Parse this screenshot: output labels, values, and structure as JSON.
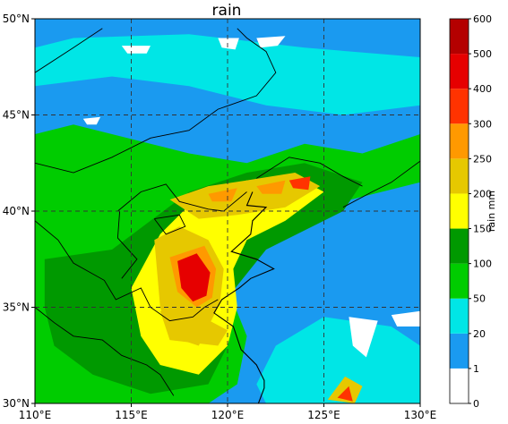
{
  "title": "rain",
  "map": {
    "lon_range": [
      110,
      130
    ],
    "lat_range": [
      30,
      50
    ],
    "lon_ticks": [
      {
        "value": 110,
        "label": "110°E"
      },
      {
        "value": 115,
        "label": "115°E"
      },
      {
        "value": 120,
        "label": "120°E"
      },
      {
        "value": 125,
        "label": "125°E"
      },
      {
        "value": 130,
        "label": "130°E"
      }
    ],
    "lat_ticks": [
      {
        "value": 30,
        "label": "30°N"
      },
      {
        "value": 35,
        "label": "35°N"
      },
      {
        "value": 40,
        "label": "40°N"
      },
      {
        "value": 45,
        "label": "45°N"
      },
      {
        "value": 50,
        "label": "50°N"
      }
    ],
    "gridlines": "dashed",
    "rain_regions": [
      {
        "name": "background",
        "level": 1,
        "lon": [
          110,
          130
        ],
        "lat": [
          30,
          50
        ]
      },
      {
        "name": "north-band",
        "level": 2,
        "poly": [
          [
            110,
            46.5
          ],
          [
            114,
            47
          ],
          [
            118,
            46.5
          ],
          [
            122,
            45.5
          ],
          [
            126,
            45
          ],
          [
            130,
            45.5
          ],
          [
            130,
            48
          ],
          [
            124,
            48.5
          ],
          [
            118,
            49.2
          ],
          [
            112,
            49
          ],
          [
            110,
            48.5
          ]
        ]
      },
      {
        "name": "west-green",
        "level": 3,
        "poly": [
          [
            110,
            44
          ],
          [
            112,
            44.5
          ],
          [
            116,
            43.5
          ],
          [
            118,
            43
          ],
          [
            121,
            42.5
          ],
          [
            124,
            43.5
          ],
          [
            127,
            43
          ],
          [
            130,
            44
          ],
          [
            130,
            41.5
          ],
          [
            126,
            40.5
          ],
          [
            122,
            38.5
          ],
          [
            120,
            36
          ],
          [
            121,
            33.5
          ],
          [
            120.5,
            31
          ],
          [
            119,
            30
          ],
          [
            110,
            30
          ]
        ]
      },
      {
        "name": "sw-green",
        "level": 4,
        "poly": [
          [
            110.5,
            37.5
          ],
          [
            114,
            38
          ],
          [
            116,
            39.5
          ],
          [
            118,
            41
          ],
          [
            121,
            42
          ],
          [
            124,
            42.5
          ],
          [
            127,
            41.5
          ],
          [
            126,
            40
          ],
          [
            122,
            38
          ],
          [
            120,
            35.5
          ],
          [
            120,
            33
          ],
          [
            119,
            31
          ],
          [
            116,
            30.5
          ],
          [
            113,
            31.5
          ],
          [
            111,
            33
          ],
          [
            110.5,
            35
          ]
        ]
      },
      {
        "name": "green-core",
        "level": 5,
        "poly": [
          [
            115,
            36
          ],
          [
            116.5,
            38.8
          ],
          [
            118.5,
            40.8
          ],
          [
            121,
            41.6
          ],
          [
            123.5,
            41.8
          ],
          [
            125,
            41
          ],
          [
            123,
            39.5
          ],
          [
            121,
            38.5
          ],
          [
            120.3,
            37
          ],
          [
            120.5,
            35
          ],
          [
            120,
            33
          ],
          [
            118.5,
            31.5
          ],
          [
            116.5,
            32
          ],
          [
            115.5,
            33.5
          ]
        ]
      },
      {
        "name": "yellow-north",
        "level": 6,
        "poly": [
          [
            117,
            40.6
          ],
          [
            119,
            41.3
          ],
          [
            121,
            41.6
          ],
          [
            123.5,
            42
          ],
          [
            124.8,
            41.3
          ],
          [
            123,
            40.2
          ],
          [
            120.5,
            39.8
          ],
          [
            118.5,
            39.6
          ]
        ]
      },
      {
        "name": "yellow-central",
        "level": 6,
        "poly": [
          [
            116.2,
            38.5
          ],
          [
            117.5,
            39.2
          ],
          [
            119,
            38.5
          ],
          [
            119.8,
            37
          ],
          [
            119.6,
            35.2
          ],
          [
            119,
            34
          ],
          [
            118.5,
            33
          ],
          [
            117,
            33.5
          ],
          [
            116.5,
            35
          ]
        ]
      },
      {
        "name": "yellow-south",
        "level": 6,
        "poly": [
          [
            116.5,
            34.8
          ],
          [
            118.5,
            34.6
          ],
          [
            120,
            33.8
          ],
          [
            119.5,
            33
          ],
          [
            117,
            33.3
          ]
        ]
      },
      {
        "name": "orange-central",
        "level": 7,
        "poly": [
          [
            117,
            37.6
          ],
          [
            118.8,
            38.2
          ],
          [
            119.4,
            37
          ],
          [
            119.2,
            35.5
          ],
          [
            118.4,
            35
          ],
          [
            117.4,
            35.8
          ]
        ]
      },
      {
        "name": "red-core",
        "level": 9,
        "poly": [
          [
            117.4,
            37.4
          ],
          [
            118.4,
            37.8
          ],
          [
            119.1,
            36.8
          ],
          [
            118.9,
            35.6
          ],
          [
            118.2,
            35.3
          ],
          [
            117.6,
            36
          ]
        ]
      },
      {
        "name": "red-north",
        "level": 8,
        "poly": [
          [
            123.2,
            41.6
          ],
          [
            124.3,
            41.8
          ],
          [
            124.2,
            41.1
          ],
          [
            123.4,
            41.2
          ]
        ]
      },
      {
        "name": "orange-north-e",
        "level": 7,
        "poly": [
          [
            121.5,
            41.3
          ],
          [
            123,
            41.6
          ],
          [
            122.8,
            40.9
          ],
          [
            121.8,
            40.9
          ]
        ]
      },
      {
        "name": "orange-north-w",
        "level": 7,
        "poly": [
          [
            119,
            40.9
          ],
          [
            120.5,
            41.2
          ],
          [
            120.2,
            40.5
          ],
          [
            119.2,
            40.5
          ]
        ]
      },
      {
        "name": "sea-cyan",
        "level": 2,
        "poly": [
          [
            121.5,
            31
          ],
          [
            122.5,
            33
          ],
          [
            125,
            34.5
          ],
          [
            128.5,
            34
          ],
          [
            130,
            33
          ],
          [
            130,
            30
          ],
          [
            122,
            30
          ]
        ]
      },
      {
        "name": "korea-blob",
        "level": 6,
        "poly": [
          [
            125.2,
            30.2
          ],
          [
            126.1,
            31.4
          ],
          [
            127,
            30.9
          ],
          [
            126.6,
            30
          ]
        ]
      },
      {
        "name": "korea-blob-red",
        "level": 8,
        "poly": [
          [
            125.7,
            30.3
          ],
          [
            126.3,
            30.9
          ],
          [
            126.5,
            30.1
          ]
        ]
      }
    ],
    "dry_patches": [
      [
        [
          114.5,
          48.6
        ],
        [
          116,
          48.6
        ],
        [
          115.8,
          48.2
        ],
        [
          114.8,
          48.2
        ]
      ],
      [
        [
          119.5,
          49
        ],
        [
          120.6,
          49
        ],
        [
          120.4,
          48.4
        ],
        [
          119.7,
          48.5
        ]
      ],
      [
        [
          121.5,
          49
        ],
        [
          123,
          49.1
        ],
        [
          122.6,
          48.6
        ],
        [
          121.7,
          48.5
        ]
      ],
      [
        [
          112.5,
          44.8
        ],
        [
          113.4,
          44.9
        ],
        [
          113.2,
          44.5
        ],
        [
          112.7,
          44.5
        ]
      ],
      [
        [
          126.3,
          34.5
        ],
        [
          127.8,
          34.3
        ],
        [
          127.2,
          32.4
        ],
        [
          126.5,
          33
        ]
      ],
      [
        [
          128.5,
          34.6
        ],
        [
          130,
          34.8
        ],
        [
          130,
          34
        ],
        [
          128.8,
          34
        ]
      ]
    ],
    "coastline": [
      [
        121.3,
        41
      ],
      [
        121,
        40.3
      ],
      [
        122,
        40.2
      ],
      [
        121.3,
        39.5
      ],
      [
        121.2,
        38.8
      ],
      [
        120.2,
        37.9
      ],
      [
        121.5,
        37.5
      ],
      [
        122.4,
        37
      ],
      [
        121.2,
        36.5
      ],
      [
        120.6,
        36
      ],
      [
        119.7,
        35.4
      ],
      [
        119.3,
        34.7
      ],
      [
        120.3,
        34
      ],
      [
        120.7,
        32.8
      ],
      [
        121.5,
        32
      ],
      [
        121.9,
        31.2
      ],
      [
        121.9,
        30.8
      ],
      [
        121.6,
        30
      ]
    ],
    "borders": [
      [
        [
          110,
          42.5
        ],
        [
          112,
          42
        ],
        [
          114,
          42.8
        ],
        [
          116,
          43.8
        ],
        [
          118,
          44.2
        ],
        [
          119.5,
          45.3
        ],
        [
          121.5,
          46
        ],
        [
          122.5,
          47.2
        ],
        [
          122,
          48.3
        ],
        [
          121,
          49
        ],
        [
          120.5,
          49.5
        ]
      ],
      [
        [
          110,
          47.2
        ],
        [
          112,
          48.5
        ],
        [
          113.5,
          49.5
        ]
      ],
      [
        [
          110,
          39.5
        ],
        [
          111.2,
          38.5
        ],
        [
          112,
          37.3
        ],
        [
          113.6,
          36.4
        ],
        [
          114.2,
          35.4
        ],
        [
          115.5,
          36
        ],
        [
          116,
          35
        ],
        [
          117,
          34.3
        ],
        [
          118.2,
          34.5
        ],
        [
          118.8,
          35
        ],
        [
          119.5,
          35.4
        ]
      ],
      [
        [
          110,
          35
        ],
        [
          111,
          34.2
        ],
        [
          112,
          33.5
        ],
        [
          113.5,
          33.3
        ],
        [
          114.5,
          32.5
        ],
        [
          115.8,
          32
        ],
        [
          116.5,
          31.5
        ],
        [
          117.2,
          30.4
        ]
      ],
      [
        [
          114.3,
          40
        ],
        [
          115.5,
          41
        ],
        [
          116.8,
          41.4
        ],
        [
          117.5,
          40.5
        ],
        [
          119,
          40.1
        ],
        [
          119.8,
          40
        ],
        [
          121,
          41
        ]
      ],
      [
        [
          116.2,
          39.6
        ],
        [
          117.5,
          39.8
        ],
        [
          117.8,
          39.2
        ],
        [
          116.8,
          38.8
        ],
        [
          116.2,
          39.6
        ]
      ],
      [
        [
          121.5,
          41.7
        ],
        [
          123.2,
          42.8
        ],
        [
          124.8,
          42.5
        ],
        [
          126,
          41.8
        ],
        [
          127,
          41.3
        ]
      ],
      [
        [
          126,
          40.2
        ],
        [
          127.5,
          41
        ],
        [
          128.5,
          41.5
        ],
        [
          130,
          42.6
        ]
      ],
      [
        [
          114.5,
          36.5
        ],
        [
          115.3,
          37.5
        ],
        [
          114.3,
          38.6
        ],
        [
          114.4,
          40
        ]
      ]
    ]
  },
  "colorbar": {
    "label": "rain  mm",
    "levels": [
      "0",
      "1",
      "20",
      "50",
      "100",
      "150",
      "200",
      "250",
      "300",
      "400",
      "500",
      "600"
    ],
    "colors": [
      "#ffffff",
      "#1a9af0",
      "#00e6e6",
      "#00cc00",
      "#009900",
      "#ffff00",
      "#e6c800",
      "#ff9900",
      "#ff3300",
      "#e60000",
      "#b40000"
    ]
  }
}
